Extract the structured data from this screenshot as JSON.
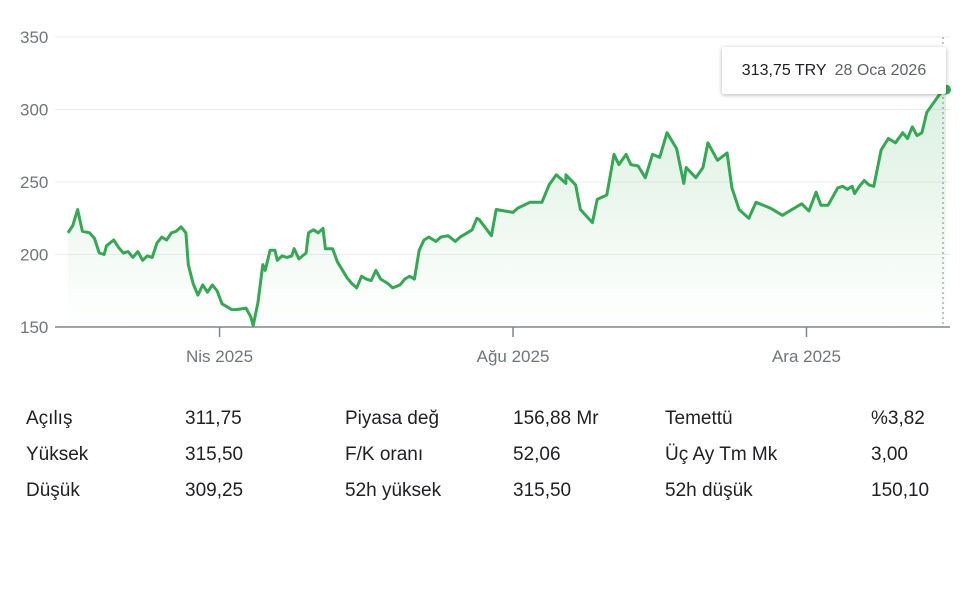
{
  "chart_data": {
    "type": "line",
    "x_unit": "days since 2025-01-28",
    "ylim": [
      150,
      350
    ],
    "yticks": [
      "350",
      "300",
      "250",
      "200",
      "150"
    ],
    "xticks": [
      {
        "label": "Nis 2025",
        "day": 63
      },
      {
        "label": "Ağu 2025",
        "day": 185
      },
      {
        "label": "Ara 2025",
        "day": 307
      }
    ],
    "line_color": "#34a853",
    "points": [
      [
        0,
        215
      ],
      [
        2,
        220
      ],
      [
        4,
        231
      ],
      [
        6,
        216
      ],
      [
        9,
        215
      ],
      [
        11,
        211
      ],
      [
        13,
        201
      ],
      [
        15,
        200
      ],
      [
        16,
        206
      ],
      [
        19,
        210
      ],
      [
        21,
        205
      ],
      [
        23,
        201
      ],
      [
        25,
        202
      ],
      [
        27,
        198
      ],
      [
        29,
        202
      ],
      [
        31,
        196
      ],
      [
        33,
        199
      ],
      [
        35,
        198
      ],
      [
        37,
        208
      ],
      [
        39,
        212
      ],
      [
        41,
        210
      ],
      [
        43,
        215
      ],
      [
        45,
        216
      ],
      [
        47,
        219
      ],
      [
        49,
        215
      ],
      [
        50,
        193
      ],
      [
        52,
        180
      ],
      [
        54,
        172
      ],
      [
        56,
        179
      ],
      [
        58,
        174
      ],
      [
        60,
        179
      ],
      [
        62,
        175
      ],
      [
        64,
        166
      ],
      [
        67,
        163
      ],
      [
        68,
        162
      ],
      [
        70,
        162
      ],
      [
        74,
        163
      ],
      [
        76,
        157
      ],
      [
        77,
        151
      ],
      [
        79,
        167
      ],
      [
        81,
        193
      ],
      [
        82,
        189
      ],
      [
        84,
        203
      ],
      [
        86,
        203
      ],
      [
        87,
        196
      ],
      [
        89,
        199
      ],
      [
        91,
        198
      ],
      [
        93,
        199
      ],
      [
        94,
        204
      ],
      [
        96,
        197
      ],
      [
        99,
        201
      ],
      [
        100,
        215
      ],
      [
        102,
        217
      ],
      [
        104,
        215
      ],
      [
        106,
        218
      ],
      [
        107,
        204
      ],
      [
        110,
        204
      ],
      [
        112,
        195
      ],
      [
        116,
        184
      ],
      [
        118,
        180
      ],
      [
        120,
        177
      ],
      [
        122,
        185
      ],
      [
        124,
        183
      ],
      [
        126,
        182
      ],
      [
        128,
        189
      ],
      [
        130,
        183
      ],
      [
        133,
        180
      ],
      [
        135,
        177
      ],
      [
        138,
        179
      ],
      [
        140,
        183
      ],
      [
        142,
        185
      ],
      [
        144,
        183
      ],
      [
        146,
        203
      ],
      [
        148,
        210
      ],
      [
        150,
        212
      ],
      [
        153,
        209
      ],
      [
        155,
        212
      ],
      [
        158,
        213
      ],
      [
        161,
        209
      ],
      [
        163,
        212
      ],
      [
        166,
        215
      ],
      [
        168,
        217
      ],
      [
        170,
        225
      ],
      [
        171,
        224
      ],
      [
        176,
        213
      ],
      [
        178,
        231
      ],
      [
        185,
        229
      ],
      [
        187,
        232
      ],
      [
        192,
        236
      ],
      [
        197,
        236
      ],
      [
        200,
        248
      ],
      [
        203,
        255
      ],
      [
        207,
        249
      ],
      [
        207,
        255
      ],
      [
        211,
        248
      ],
      [
        213,
        231
      ],
      [
        218,
        222
      ],
      [
        220,
        238
      ],
      [
        224,
        241
      ],
      [
        227,
        269
      ],
      [
        229,
        262
      ],
      [
        232,
        269
      ],
      [
        234,
        262
      ],
      [
        237,
        261
      ],
      [
        240,
        253
      ],
      [
        243,
        269
      ],
      [
        246,
        267
      ],
      [
        249,
        284
      ],
      [
        253,
        273
      ],
      [
        256,
        249
      ],
      [
        257,
        260
      ],
      [
        261,
        253
      ],
      [
        264,
        260
      ],
      [
        266,
        277
      ],
      [
        270,
        265
      ],
      [
        274,
        270
      ],
      [
        276,
        246
      ],
      [
        279,
        231
      ],
      [
        283,
        225
      ],
      [
        286,
        236
      ],
      [
        292,
        232
      ],
      [
        297,
        227
      ],
      [
        301,
        231
      ],
      [
        305,
        235
      ],
      [
        308,
        230
      ],
      [
        311,
        243
      ],
      [
        313,
        234
      ],
      [
        316,
        234
      ],
      [
        320,
        246
      ],
      [
        322,
        247
      ],
      [
        324,
        245
      ],
      [
        326,
        247
      ],
      [
        327,
        242
      ],
      [
        329,
        247
      ],
      [
        331,
        251
      ],
      [
        333,
        248
      ],
      [
        335,
        247
      ],
      [
        338,
        272
      ],
      [
        341,
        280
      ],
      [
        344,
        277
      ],
      [
        347,
        284
      ],
      [
        349,
        280
      ],
      [
        351,
        288
      ],
      [
        353,
        282
      ],
      [
        355,
        284
      ],
      [
        357,
        298
      ],
      [
        360,
        305
      ],
      [
        363,
        312
      ],
      [
        365,
        313.75
      ]
    ]
  },
  "tooltip": {
    "price": "313,75 TRY",
    "date": "28 Oca 2026"
  },
  "stats": [
    {
      "label": "Açılış",
      "value": "311,75"
    },
    {
      "label": "Yüksek",
      "value": "315,50"
    },
    {
      "label": "Düşük",
      "value": "309,25"
    },
    {
      "label": "Piyasa değ",
      "value": "156,88 Mr"
    },
    {
      "label": "F/K oranı",
      "value": "52,06"
    },
    {
      "label": "52h yüksek",
      "value": "315,50"
    },
    {
      "label": "Temettü",
      "value": "%3,82"
    },
    {
      "label": "Üç Ay Tm Mk",
      "value": "3,00"
    },
    {
      "label": "52h düşük",
      "value": "150,10"
    }
  ]
}
